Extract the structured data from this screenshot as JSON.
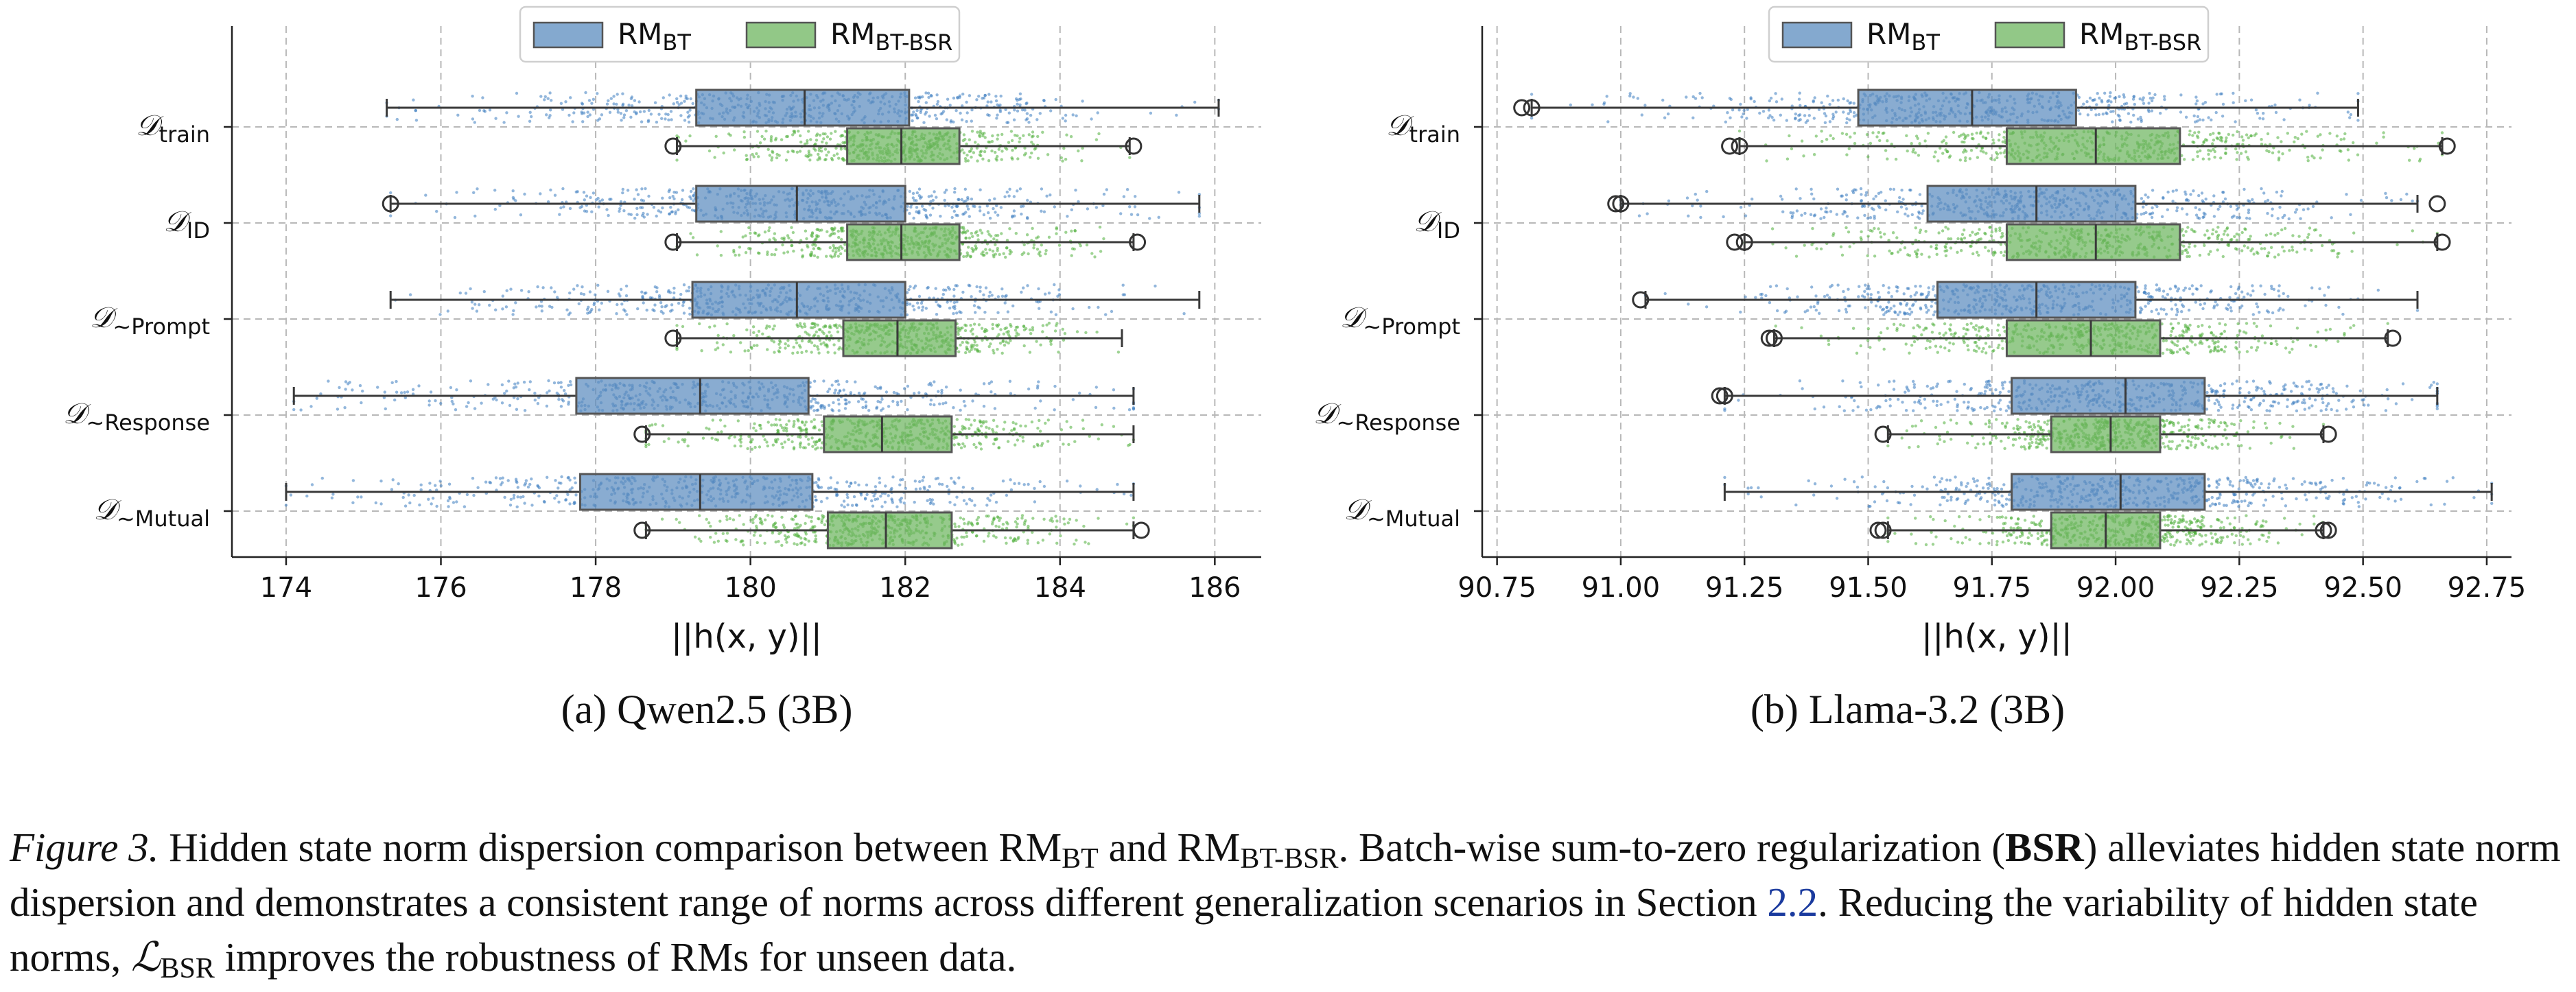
{
  "colors": {
    "bt": "#5b8cbf",
    "bsr": "#6db55f",
    "bt_point": "#3a7bbf",
    "bsr_point": "#4fae3a",
    "link": "#1a3a9e"
  },
  "legend": {
    "bt": {
      "main": "RM",
      "sub": "BT"
    },
    "bsr": {
      "main": "RM",
      "sub": "BT-BSR"
    }
  },
  "category_labels": [
    {
      "main": "𝒟",
      "sub": "train"
    },
    {
      "main": "𝒟",
      "sub": "ID"
    },
    {
      "main": "𝒟",
      "sub": "∼Prompt"
    },
    {
      "main": "𝒟",
      "sub": "∼Response"
    },
    {
      "main": "𝒟",
      "sub": "∼Mutual"
    }
  ],
  "xlabel": "||h(x, y)||",
  "subcaptions": {
    "a": "(a) Qwen2.5 (3B)",
    "b": "(b) Llama-3.2 (3B)"
  },
  "caption": {
    "label": "Figure 3.",
    "text1": " Hidden state norm dispersion comparison between RM",
    "sub_bt": "BT",
    "text2": " and RM",
    "sub_bsr": "BT-BSR",
    "text3": ". Batch-wise sum-to-zero regularization (",
    "bold": "BSR",
    "text4": ") alleviates hidden state norm dispersion and demonstrates a consistent range of norms across different generalization scenarios in Section ",
    "link": "2.2",
    "text5": ". Reducing the variability of hidden state norms, ",
    "loss_main": "ℒ",
    "loss_sub": "BSR",
    "text6": " improves the robustness of RMs for unseen data."
  },
  "chart_data": [
    {
      "type": "box",
      "orientation": "horizontal",
      "categories": [
        "D_train",
        "D_ID",
        "D_~Prompt",
        "D_~Response",
        "D_~Mutual"
      ],
      "xlabel": "||h(x, y)||",
      "xlim": [
        173.3,
        186.6
      ],
      "xticks": [
        174,
        176,
        178,
        180,
        182,
        184,
        186
      ],
      "xtick_labels": [
        "174",
        "176",
        "178",
        "180",
        "182",
        "184",
        "186"
      ],
      "grid": true,
      "legend_position": "top-center",
      "series": [
        {
          "name": "RM_BT",
          "boxes": [
            {
              "whislo": 175.3,
              "q1": 179.3,
              "med": 180.7,
              "q3": 182.05,
              "whishi": 186.05,
              "fliers": []
            },
            {
              "whislo": 175.35,
              "q1": 179.3,
              "med": 180.6,
              "q3": 182.0,
              "whishi": 185.8,
              "fliers": [
                175.35
              ]
            },
            {
              "whislo": 175.35,
              "q1": 179.25,
              "med": 180.6,
              "q3": 182.0,
              "whishi": 185.8,
              "fliers": []
            },
            {
              "whislo": 174.1,
              "q1": 177.75,
              "med": 179.35,
              "q3": 180.75,
              "whishi": 184.95,
              "fliers": []
            },
            {
              "whislo": 174.0,
              "q1": 177.8,
              "med": 179.35,
              "q3": 180.8,
              "whishi": 184.95,
              "fliers": []
            }
          ]
        },
        {
          "name": "RM_BT-BSR",
          "boxes": [
            {
              "whislo": 179.05,
              "q1": 181.25,
              "med": 181.95,
              "q3": 182.7,
              "whishi": 184.9,
              "fliers": [
                179.0,
                184.95
              ]
            },
            {
              "whislo": 179.05,
              "q1": 181.25,
              "med": 181.95,
              "q3": 182.7,
              "whishi": 184.95,
              "fliers": [
                179.0,
                185.0
              ]
            },
            {
              "whislo": 179.05,
              "q1": 181.2,
              "med": 181.9,
              "q3": 182.65,
              "whishi": 184.8,
              "fliers": [
                179.0
              ]
            },
            {
              "whislo": 178.65,
              "q1": 180.95,
              "med": 181.7,
              "q3": 182.6,
              "whishi": 184.95,
              "fliers": [
                178.6
              ]
            },
            {
              "whislo": 178.65,
              "q1": 181.0,
              "med": 181.75,
              "q3": 182.6,
              "whishi": 184.95,
              "fliers": [
                178.6,
                185.05
              ]
            }
          ]
        }
      ]
    },
    {
      "type": "box",
      "orientation": "horizontal",
      "categories": [
        "D_train",
        "D_ID",
        "D_~Prompt",
        "D_~Response",
        "D_~Mutual"
      ],
      "xlabel": "||h(x, y)||",
      "xlim": [
        90.72,
        92.8
      ],
      "xticks": [
        90.75,
        91.0,
        91.25,
        91.5,
        91.75,
        92.0,
        92.25,
        92.5,
        92.75
      ],
      "xtick_labels": [
        "90.75",
        "91.00",
        "91.25",
        "91.50",
        "91.75",
        "92.00",
        "92.25",
        "92.50",
        "92.75"
      ],
      "grid": true,
      "legend_position": "top-center",
      "series": [
        {
          "name": "RM_BT",
          "boxes": [
            {
              "whislo": 90.82,
              "q1": 91.48,
              "med": 91.71,
              "q3": 91.92,
              "whishi": 92.49,
              "fliers": [
                90.8,
                90.82
              ]
            },
            {
              "whislo": 91.0,
              "q1": 91.62,
              "med": 91.84,
              "q3": 92.04,
              "whishi": 92.61,
              "fliers": [
                90.99,
                91.0,
                92.65
              ]
            },
            {
              "whislo": 91.05,
              "q1": 91.64,
              "med": 91.84,
              "q3": 92.04,
              "whishi": 92.61,
              "fliers": [
                91.04
              ]
            },
            {
              "whislo": 91.21,
              "q1": 91.79,
              "med": 92.02,
              "q3": 92.18,
              "whishi": 92.65,
              "fliers": [
                91.2,
                91.21
              ]
            },
            {
              "whislo": 91.21,
              "q1": 91.79,
              "med": 92.01,
              "q3": 92.18,
              "whishi": 92.76,
              "fliers": []
            }
          ]
        },
        {
          "name": "RM_BT-BSR",
          "boxes": [
            {
              "whislo": 91.24,
              "q1": 91.78,
              "med": 91.96,
              "q3": 92.13,
              "whishi": 92.66,
              "fliers": [
                91.22,
                91.24,
                92.67
              ]
            },
            {
              "whislo": 91.25,
              "q1": 91.78,
              "med": 91.96,
              "q3": 92.13,
              "whishi": 92.65,
              "fliers": [
                91.23,
                91.25,
                92.66
              ]
            },
            {
              "whislo": 91.31,
              "q1": 91.78,
              "med": 91.95,
              "q3": 92.09,
              "whishi": 92.55,
              "fliers": [
                91.3,
                91.31,
                92.56
              ]
            },
            {
              "whislo": 91.54,
              "q1": 91.87,
              "med": 91.99,
              "q3": 92.09,
              "whishi": 92.42,
              "fliers": [
                91.53,
                92.43
              ]
            },
            {
              "whislo": 91.54,
              "q1": 91.87,
              "med": 91.98,
              "q3": 92.09,
              "whishi": 92.42,
              "fliers": [
                91.52,
                91.53,
                92.42,
                92.43
              ]
            }
          ]
        }
      ]
    }
  ]
}
